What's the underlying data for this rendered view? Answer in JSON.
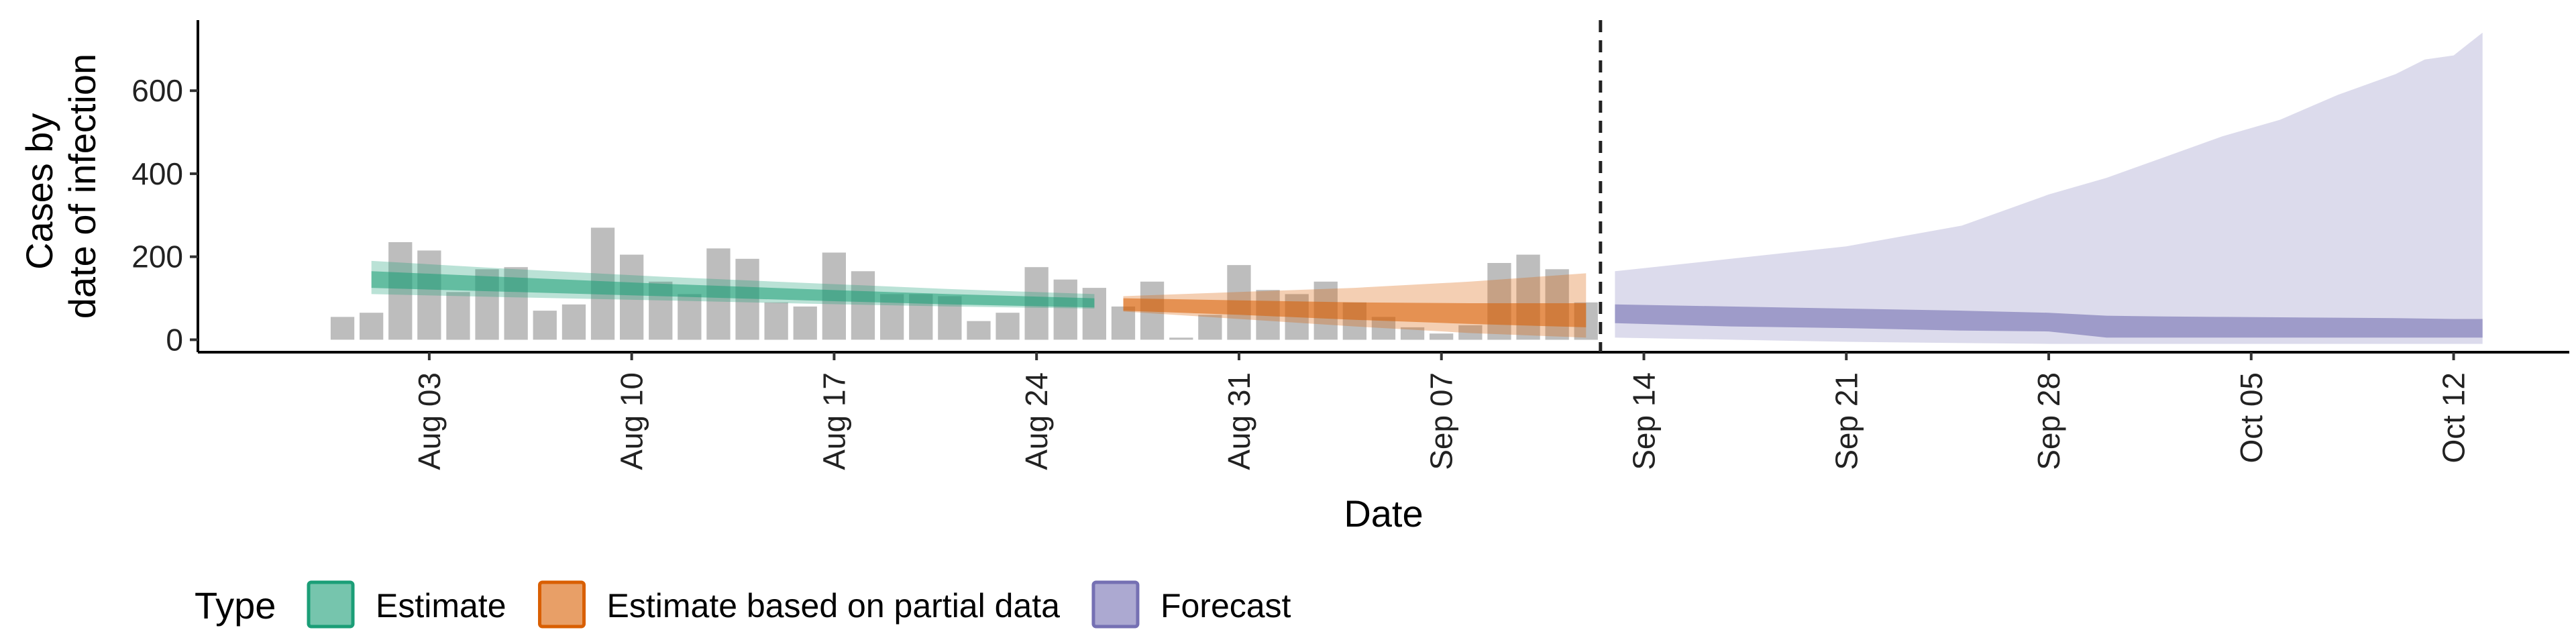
{
  "chart_data": {
    "type": "bar",
    "xlabel": "Date",
    "ylabel_lines": [
      "Cases by",
      "date of infection"
    ],
    "x_range": [
      "2020-07-26",
      "2020-10-16"
    ],
    "ylim": [
      -30,
      770
    ],
    "y_ticks": [
      0,
      200,
      400,
      600
    ],
    "x_ticks": [
      {
        "date": "2020-08-03",
        "label": "Aug 03"
      },
      {
        "date": "2020-08-10",
        "label": "Aug 10"
      },
      {
        "date": "2020-08-17",
        "label": "Aug 17"
      },
      {
        "date": "2020-08-24",
        "label": "Aug 24"
      },
      {
        "date": "2020-08-31",
        "label": "Aug 31"
      },
      {
        "date": "2020-09-07",
        "label": "Sep 07"
      },
      {
        "date": "2020-09-14",
        "label": "Sep 14"
      },
      {
        "date": "2020-09-21",
        "label": "Sep 21"
      },
      {
        "date": "2020-09-28",
        "label": "Sep 28"
      },
      {
        "date": "2020-10-05",
        "label": "Oct 05"
      },
      {
        "date": "2020-10-12",
        "label": "Oct 12"
      }
    ],
    "forecast_start": "2020-09-13",
    "bars": {
      "color": "#bdbdbd",
      "dates": [
        "2020-07-31",
        "2020-08-01",
        "2020-08-02",
        "2020-08-03",
        "2020-08-04",
        "2020-08-05",
        "2020-08-06",
        "2020-08-07",
        "2020-08-08",
        "2020-08-09",
        "2020-08-10",
        "2020-08-11",
        "2020-08-12",
        "2020-08-13",
        "2020-08-14",
        "2020-08-15",
        "2020-08-16",
        "2020-08-17",
        "2020-08-18",
        "2020-08-19",
        "2020-08-20",
        "2020-08-21",
        "2020-08-22",
        "2020-08-23",
        "2020-08-24",
        "2020-08-25",
        "2020-08-26",
        "2020-08-27",
        "2020-08-28",
        "2020-08-29",
        "2020-08-30",
        "2020-08-31",
        "2020-09-01",
        "2020-09-02",
        "2020-09-03",
        "2020-09-04",
        "2020-09-05",
        "2020-09-06",
        "2020-09-07",
        "2020-09-08",
        "2020-09-09",
        "2020-09-10",
        "2020-09-11",
        "2020-09-12"
      ],
      "values": [
        55,
        65,
        235,
        215,
        115,
        170,
        175,
        70,
        85,
        270,
        205,
        140,
        110,
        220,
        195,
        90,
        80,
        210,
        165,
        110,
        110,
        105,
        45,
        65,
        175,
        145,
        125,
        80,
        140,
        5,
        60,
        180,
        120,
        110,
        140,
        90,
        55,
        30,
        15,
        35,
        185,
        205,
        170,
        90
      ]
    },
    "series": [
      {
        "name": "Estimate",
        "color": "#1b9e77",
        "x": [
          "2020-08-01",
          "2020-08-06",
          "2020-08-11",
          "2020-08-16",
          "2020-08-21",
          "2020-08-26"
        ],
        "inner_lower": [
          125,
          115,
          105,
          95,
          85,
          78
        ],
        "inner_upper": [
          165,
          150,
          135,
          122,
          110,
          100
        ],
        "outer_lower": [
          110,
          102,
          95,
          87,
          80,
          75
        ],
        "outer_upper": [
          190,
          170,
          152,
          137,
          122,
          110
        ]
      },
      {
        "name": "Estimate based on partial data",
        "color": "#d95f02",
        "x": [
          "2020-08-27",
          "2020-08-31",
          "2020-09-04",
          "2020-09-08",
          "2020-09-12"
        ],
        "inner_lower": [
          70,
          60,
          48,
          38,
          30
        ],
        "inner_upper": [
          100,
          95,
          90,
          88,
          88
        ],
        "outer_lower": [
          68,
          50,
          32,
          16,
          5
        ],
        "outer_upper": [
          105,
          115,
          125,
          140,
          160
        ]
      },
      {
        "name": "Forecast",
        "color": "#7570b3",
        "x": [
          "2020-09-13",
          "2020-09-17",
          "2020-09-21",
          "2020-09-25",
          "2020-09-28",
          "2020-09-30",
          "2020-10-02",
          "2020-10-04",
          "2020-10-06",
          "2020-10-08",
          "2020-10-10",
          "2020-10-11",
          "2020-10-12",
          "2020-10-13"
        ],
        "inner_lower": [
          40,
          32,
          28,
          22,
          20,
          5,
          5,
          5,
          5,
          5,
          5,
          5,
          5,
          5
        ],
        "inner_upper": [
          85,
          80,
          75,
          70,
          65,
          58,
          56,
          55,
          54,
          53,
          52,
          51,
          50,
          50
        ],
        "outer_lower": [
          5,
          0,
          -5,
          -8,
          -10,
          -10,
          -10,
          -10,
          -10,
          -10,
          -10,
          -10,
          -10,
          -10
        ],
        "outer_upper": [
          165,
          195,
          225,
          275,
          350,
          390,
          440,
          490,
          530,
          590,
          640,
          675,
          685,
          740
        ]
      }
    ],
    "legend": {
      "title": "Type",
      "placement": "bottom-left",
      "entries": [
        "Estimate",
        "Estimate based on partial data",
        "Forecast"
      ]
    }
  }
}
